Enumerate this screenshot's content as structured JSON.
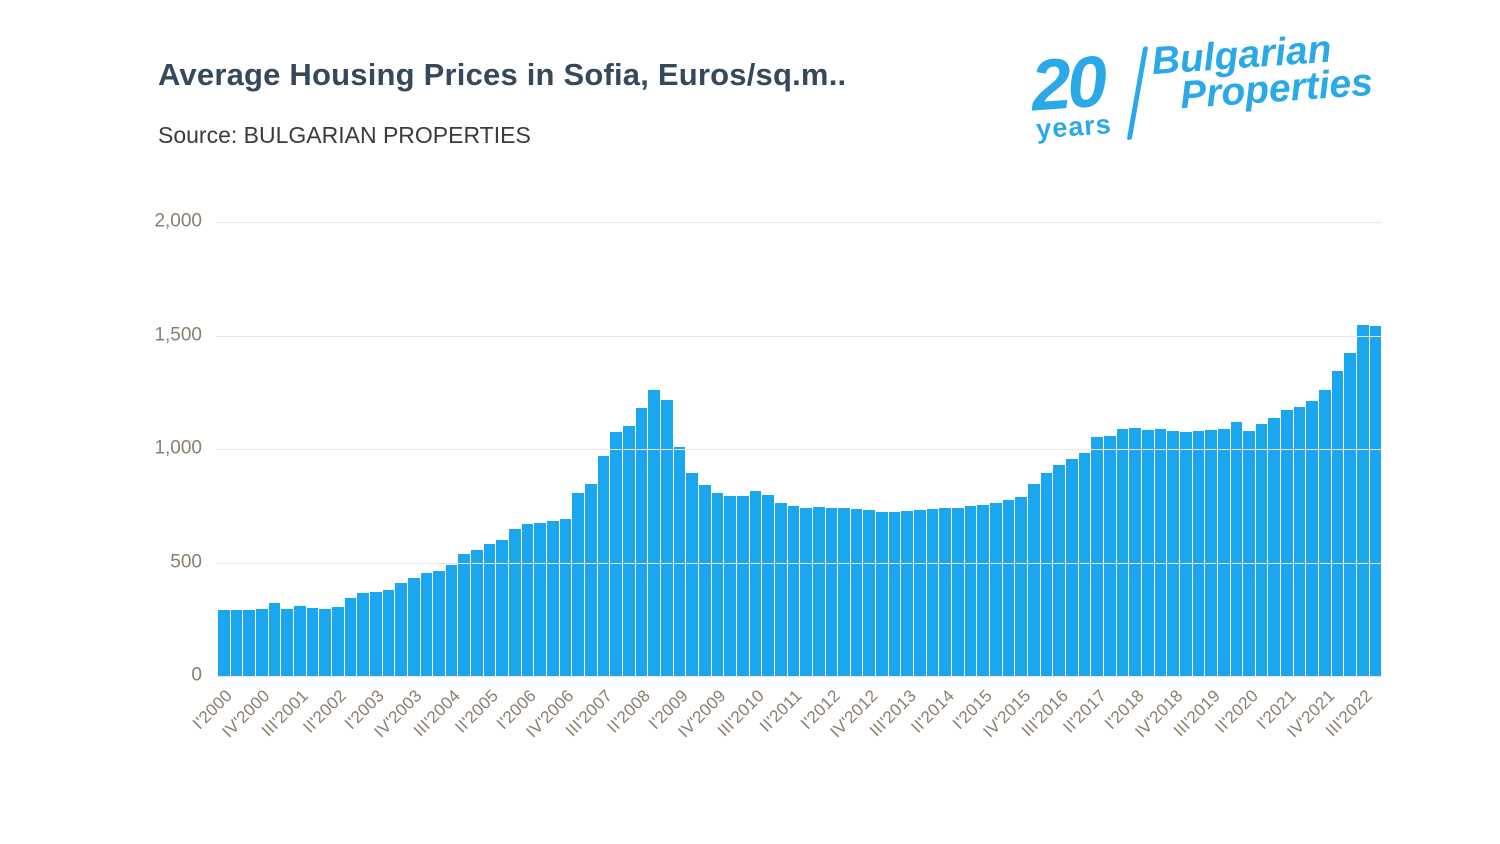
{
  "header": {
    "title": "Average Housing Prices in Sofia, Euros/sq.m..",
    "source": "Source: BULGARIAN PROPERTIES"
  },
  "logo": {
    "number": "20",
    "years": "years",
    "name_line1": "Bulgarian",
    "name_line2": "Properties",
    "color": "#2aa9e8"
  },
  "chart_data": {
    "type": "bar",
    "title": "Average Housing Prices in Sofia, Euros/sq.m..",
    "ylabel": "Euros/sq.m",
    "xlabel": "",
    "ylim": [
      0,
      2000
    ],
    "grid": true,
    "bar_color": "#1aa7f0",
    "axis_text_color": "#8b7e71",
    "x": [
      "I'2000",
      "II'2000",
      "III'2000",
      "IV'2000",
      "I'2001",
      "II'2001",
      "III'2001",
      "IV'2001",
      "I'2002",
      "II'2002",
      "III'2002",
      "IV'2002",
      "I'2003",
      "II'2003",
      "III'2003",
      "IV'2003",
      "I'2004",
      "II'2004",
      "III'2004",
      "IV'2004",
      "I'2005",
      "II'2005",
      "III'2005",
      "IV'2005",
      "I'2006",
      "II'2006",
      "III'2006",
      "IV'2006",
      "I'2007",
      "II'2007",
      "III'2007",
      "IV'2007",
      "I'2008",
      "II'2008",
      "III'2008",
      "IV'2008",
      "I'2009",
      "II'2009",
      "III'2009",
      "IV'2009",
      "I'2010",
      "II'2010",
      "III'2010",
      "IV'2010",
      "I'2011",
      "II'2011",
      "III'2011",
      "IV'2011",
      "I'2012",
      "II'2012",
      "III'2012",
      "IV'2012",
      "I'2013",
      "II'2013",
      "III'2013",
      "IV'2013",
      "I'2014",
      "II'2014",
      "III'2014",
      "IV'2014",
      "I'2015",
      "II'2015",
      "III'2015",
      "IV'2015",
      "I'2016",
      "II'2016",
      "III'2016",
      "IV'2016",
      "I'2017",
      "II'2017",
      "III'2017",
      "IV'2017",
      "I'2018",
      "II'2018",
      "III'2018",
      "IV'2018",
      "I'2019",
      "II'2019",
      "III'2019",
      "IV'2019",
      "I'2020",
      "II'2020",
      "III'2020",
      "IV'2020",
      "I'2021",
      "II'2021",
      "III'2021",
      "IV'2021",
      "I'2022",
      "II'2022",
      "III'2022",
      "IV'2022"
    ],
    "values": [
      292,
      293,
      290,
      296,
      320,
      297,
      310,
      298,
      295,
      303,
      345,
      367,
      372,
      377,
      410,
      430,
      452,
      464,
      490,
      537,
      555,
      580,
      598,
      648,
      668,
      675,
      682,
      692,
      806,
      848,
      970,
      1073,
      1103,
      1181,
      1262,
      1216,
      1010,
      893,
      843,
      806,
      793,
      794,
      813,
      797,
      763,
      749,
      741,
      744,
      742,
      739,
      736,
      731,
      724,
      722,
      727,
      731,
      735,
      738,
      742,
      747,
      752,
      762,
      775,
      790,
      845,
      896,
      928,
      957,
      984,
      1054,
      1056,
      1090,
      1094,
      1084,
      1090,
      1079,
      1076,
      1078,
      1084,
      1087,
      1121,
      1080,
      1110,
      1135,
      1172,
      1185,
      1210,
      1260,
      1345,
      1425,
      1545,
      1540
    ],
    "x_tick_indices": [
      0,
      3,
      6,
      9,
      12,
      15,
      18,
      21,
      24,
      27,
      30,
      33,
      36,
      39,
      42,
      45,
      48,
      51,
      54,
      57,
      60,
      63,
      66,
      69,
      72,
      75,
      78,
      81,
      84,
      87,
      90
    ],
    "x_tick_labels": [
      "I'2000",
      "IV'2000",
      "III'2001",
      "II'2002",
      "I'2003",
      "IV'2003",
      "III'2004",
      "II'2005",
      "I'2006",
      "IV'2006",
      "III'2007",
      "II'2008",
      "I'2009",
      "IV'2009",
      "III'2010",
      "II'2011",
      "I'2012",
      "IV'2012",
      "III'2013",
      "II'2014",
      "I'2015",
      "IV'2015",
      "III'2016",
      "II'2017",
      "I'2018",
      "IV'2018",
      "III'2019",
      "II'2020",
      "I'2021",
      "IV'2021",
      "III'2022"
    ],
    "y_ticks": [
      "2,000",
      "1,500",
      "1,000",
      "500",
      "0"
    ]
  }
}
